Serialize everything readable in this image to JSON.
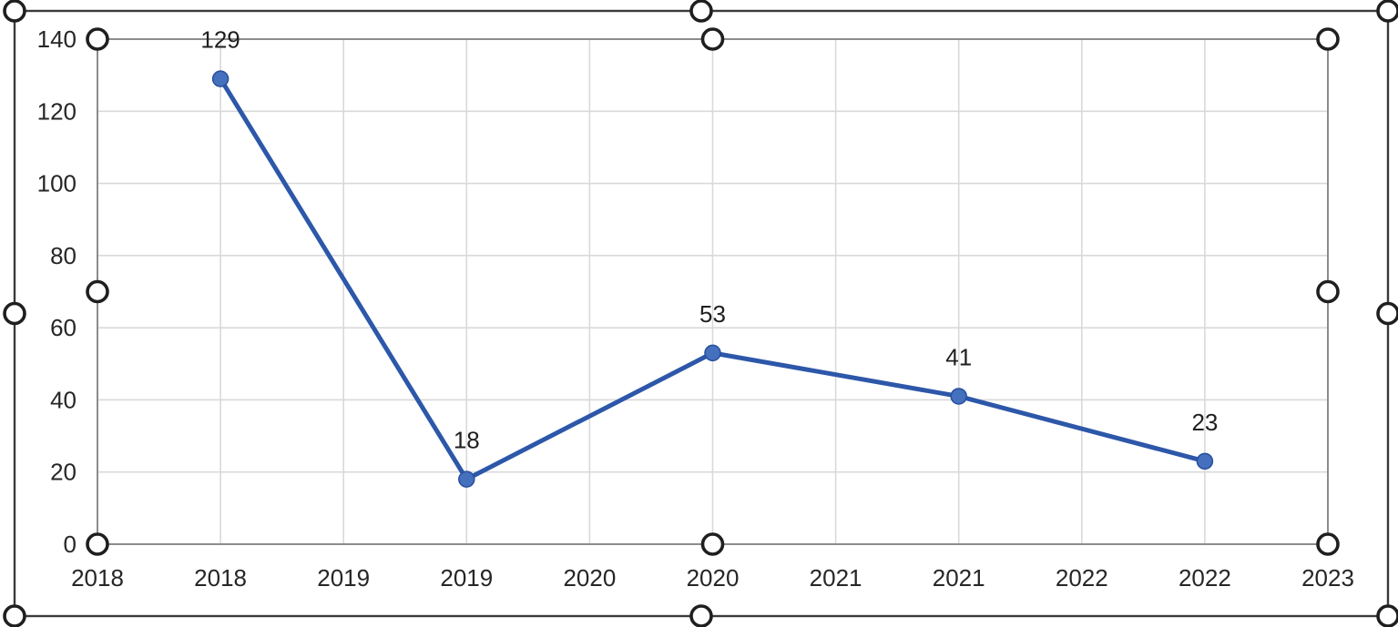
{
  "chart_data": {
    "type": "line",
    "title": "",
    "xlabel": "",
    "ylabel": "",
    "x_tick_labels": [
      "2018",
      "2018",
      "2019",
      "2019",
      "2020",
      "2020",
      "2021",
      "2021",
      "2022",
      "2022",
      "2023"
    ],
    "y_tick_labels": [
      "0",
      "20",
      "40",
      "60",
      "80",
      "100",
      "120",
      "140"
    ],
    "ylim": [
      0,
      140
    ],
    "y_step": 20,
    "grid": true,
    "legend_position": "none",
    "series": [
      {
        "name": "values",
        "categories": [
          "2018",
          "2019",
          "2020",
          "2021",
          "2022"
        ],
        "tick_indices": [
          1,
          3,
          5,
          7,
          9
        ],
        "values": [
          129,
          18,
          53,
          41,
          23
        ],
        "data_labels": [
          "129",
          "18",
          "53",
          "41",
          "23"
        ]
      }
    ]
  },
  "selection": {
    "chart_area_selected": true,
    "plot_area_selected": true
  },
  "colors": {
    "series_line": "#2d57a9",
    "marker_fill": "#4470bd",
    "marker_edge": "#274f9e",
    "gridline": "#d9d9d9",
    "plot_border": "#8c8c8c",
    "axis_text": "#262626",
    "data_label_text": "#1f1f1f",
    "chart_frame": "#3a3a3a",
    "handle_fill": "#ffffff",
    "handle_stroke": "#1f1f1f",
    "background": "#ffffff"
  }
}
